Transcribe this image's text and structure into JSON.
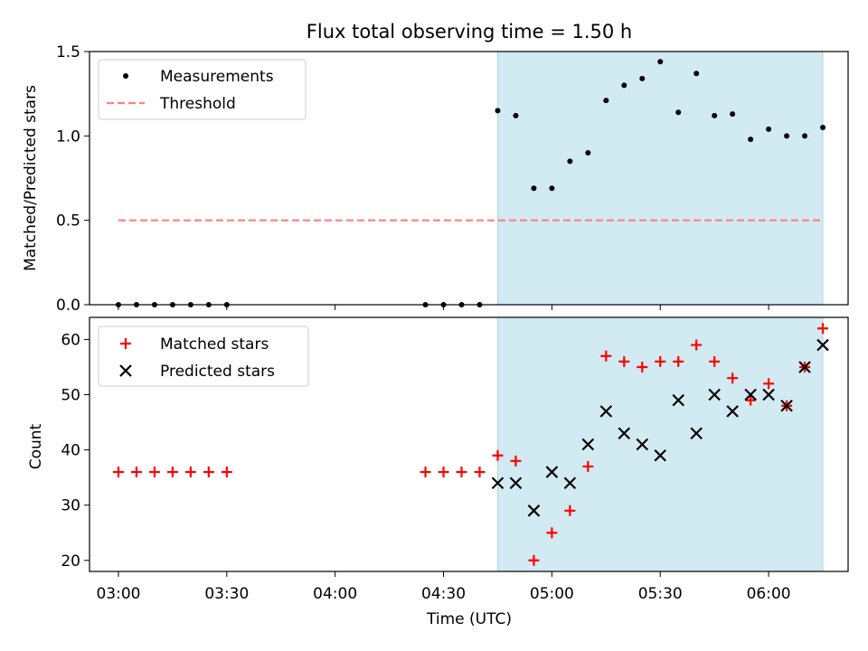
{
  "chart_data": [
    {
      "type": "scatter",
      "title": "Flux total observing time = 1.50 h",
      "xlabel": "",
      "ylabel": "Matched/Predicted stars",
      "xlim": [
        "02:52",
        "06:22"
      ],
      "ylim": [
        0,
        1.5
      ],
      "yticks": [
        "0.0",
        "0.5",
        "1.0",
        "1.5"
      ],
      "shaded_span": [
        "04:45",
        "06:15"
      ],
      "shade_color": "#add8e6",
      "legend_position": "upper-left",
      "legend": [
        "Measurements",
        "Threshold"
      ],
      "threshold": {
        "name": "Threshold",
        "value": 0.5,
        "x": [
          "03:00",
          "06:15"
        ],
        "color": "#ff7f7f",
        "style": "dashed"
      },
      "measurements": {
        "name": "Measurements",
        "color": "#000000",
        "points": [
          [
            "03:00",
            0.0
          ],
          [
            "03:05",
            0.0
          ],
          [
            "03:10",
            0.0
          ],
          [
            "03:15",
            0.0
          ],
          [
            "03:20",
            0.0
          ],
          [
            "03:25",
            0.0
          ],
          [
            "03:30",
            0.0
          ],
          [
            "04:25",
            0.0
          ],
          [
            "04:30",
            0.0
          ],
          [
            "04:35",
            0.0
          ],
          [
            "04:40",
            0.0
          ],
          [
            "04:45",
            1.15
          ],
          [
            "04:50",
            1.12
          ],
          [
            "04:55",
            0.69
          ],
          [
            "05:00",
            0.69
          ],
          [
            "05:05",
            0.85
          ],
          [
            "05:10",
            0.9
          ],
          [
            "05:15",
            1.21
          ],
          [
            "05:20",
            1.3
          ],
          [
            "05:25",
            1.34
          ],
          [
            "05:30",
            1.44
          ],
          [
            "05:35",
            1.14
          ],
          [
            "05:40",
            1.37
          ],
          [
            "05:45",
            1.12
          ],
          [
            "05:50",
            1.13
          ],
          [
            "05:55",
            0.98
          ],
          [
            "06:00",
            1.04
          ],
          [
            "06:05",
            1.0
          ],
          [
            "06:10",
            1.0
          ],
          [
            "06:15",
            1.05
          ]
        ]
      }
    },
    {
      "type": "scatter",
      "title": "",
      "xlabel": "Time (UTC)",
      "ylabel": "Count",
      "xlim": [
        "02:52",
        "06:22"
      ],
      "ylim": [
        18,
        64
      ],
      "yticks": [
        "20",
        "30",
        "40",
        "50",
        "60"
      ],
      "xticks": [
        "03:00",
        "03:30",
        "04:00",
        "04:30",
        "05:00",
        "05:30",
        "06:00"
      ],
      "shaded_span": [
        "04:45",
        "06:15"
      ],
      "legend_position": "upper-left",
      "legend": [
        "Matched stars",
        "Predicted stars"
      ],
      "series": [
        {
          "name": "Matched stars",
          "marker": "+",
          "color": "#ff0000",
          "points": [
            [
              "03:00",
              36
            ],
            [
              "03:05",
              36
            ],
            [
              "03:10",
              36
            ],
            [
              "03:15",
              36
            ],
            [
              "03:20",
              36
            ],
            [
              "03:25",
              36
            ],
            [
              "03:30",
              36
            ],
            [
              "04:25",
              36
            ],
            [
              "04:30",
              36
            ],
            [
              "04:35",
              36
            ],
            [
              "04:40",
              36
            ],
            [
              "04:45",
              39
            ],
            [
              "04:50",
              38
            ],
            [
              "04:55",
              20
            ],
            [
              "05:00",
              25
            ],
            [
              "05:05",
              29
            ],
            [
              "05:10",
              37
            ],
            [
              "05:15",
              57
            ],
            [
              "05:20",
              56
            ],
            [
              "05:25",
              55
            ],
            [
              "05:30",
              56
            ],
            [
              "05:35",
              56
            ],
            [
              "05:40",
              59
            ],
            [
              "05:45",
              56
            ],
            [
              "05:50",
              53
            ],
            [
              "05:55",
              49
            ],
            [
              "06:00",
              52
            ],
            [
              "06:05",
              48
            ],
            [
              "06:10",
              55
            ],
            [
              "06:15",
              62
            ]
          ]
        },
        {
          "name": "Predicted stars",
          "marker": "x",
          "color": "#000000",
          "points": [
            [
              "04:45",
              34
            ],
            [
              "04:50",
              34
            ],
            [
              "04:55",
              29
            ],
            [
              "05:00",
              36
            ],
            [
              "05:05",
              34
            ],
            [
              "05:10",
              41
            ],
            [
              "05:15",
              47
            ],
            [
              "05:20",
              43
            ],
            [
              "05:25",
              41
            ],
            [
              "05:30",
              39
            ],
            [
              "05:35",
              49
            ],
            [
              "05:40",
              43
            ],
            [
              "05:45",
              50
            ],
            [
              "05:50",
              47
            ],
            [
              "05:55",
              50
            ],
            [
              "06:00",
              50
            ],
            [
              "06:05",
              48
            ],
            [
              "06:10",
              55
            ],
            [
              "06:15",
              59
            ]
          ]
        }
      ]
    }
  ]
}
